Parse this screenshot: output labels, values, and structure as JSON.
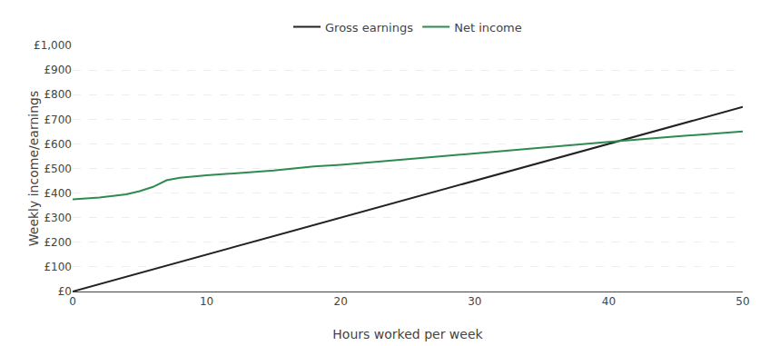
{
  "chart_data": {
    "type": "line",
    "xlabel": "Hours worked per week",
    "ylabel": "Weekly income/earnings",
    "series": [
      {
        "name": "Gross earnings",
        "color": "#222222",
        "x": [
          0,
          50
        ],
        "values": [
          0,
          750
        ]
      },
      {
        "name": "Net income",
        "color": "#2e8b50",
        "x": [
          0,
          1,
          2,
          3,
          4,
          5,
          6,
          7,
          8,
          10,
          12,
          15,
          18,
          20,
          25,
          30,
          35,
          40,
          45,
          50
        ],
        "values": [
          375,
          378,
          382,
          388,
          395,
          408,
          425,
          452,
          462,
          472,
          480,
          492,
          508,
          515,
          538,
          562,
          585,
          608,
          630,
          650
        ]
      }
    ],
    "xlim": [
      0,
      50
    ],
    "xticks": [
      0,
      10,
      20,
      30,
      40,
      50
    ],
    "ylim": [
      0,
      1000
    ],
    "yticks": [
      {
        "value": 0,
        "label": "£0"
      },
      {
        "value": 100,
        "label": "£100"
      },
      {
        "value": 200,
        "label": "£200"
      },
      {
        "value": 300,
        "label": "£300"
      },
      {
        "value": 400,
        "label": "£400"
      },
      {
        "value": 500,
        "label": "£500"
      },
      {
        "value": 600,
        "label": "£600"
      },
      {
        "value": 700,
        "label": "£700"
      },
      {
        "value": 800,
        "label": "£800"
      },
      {
        "value": 900,
        "label": "£900"
      },
      {
        "value": 1000,
        "label": "£1,000"
      }
    ],
    "grid": true,
    "legend": "top"
  }
}
